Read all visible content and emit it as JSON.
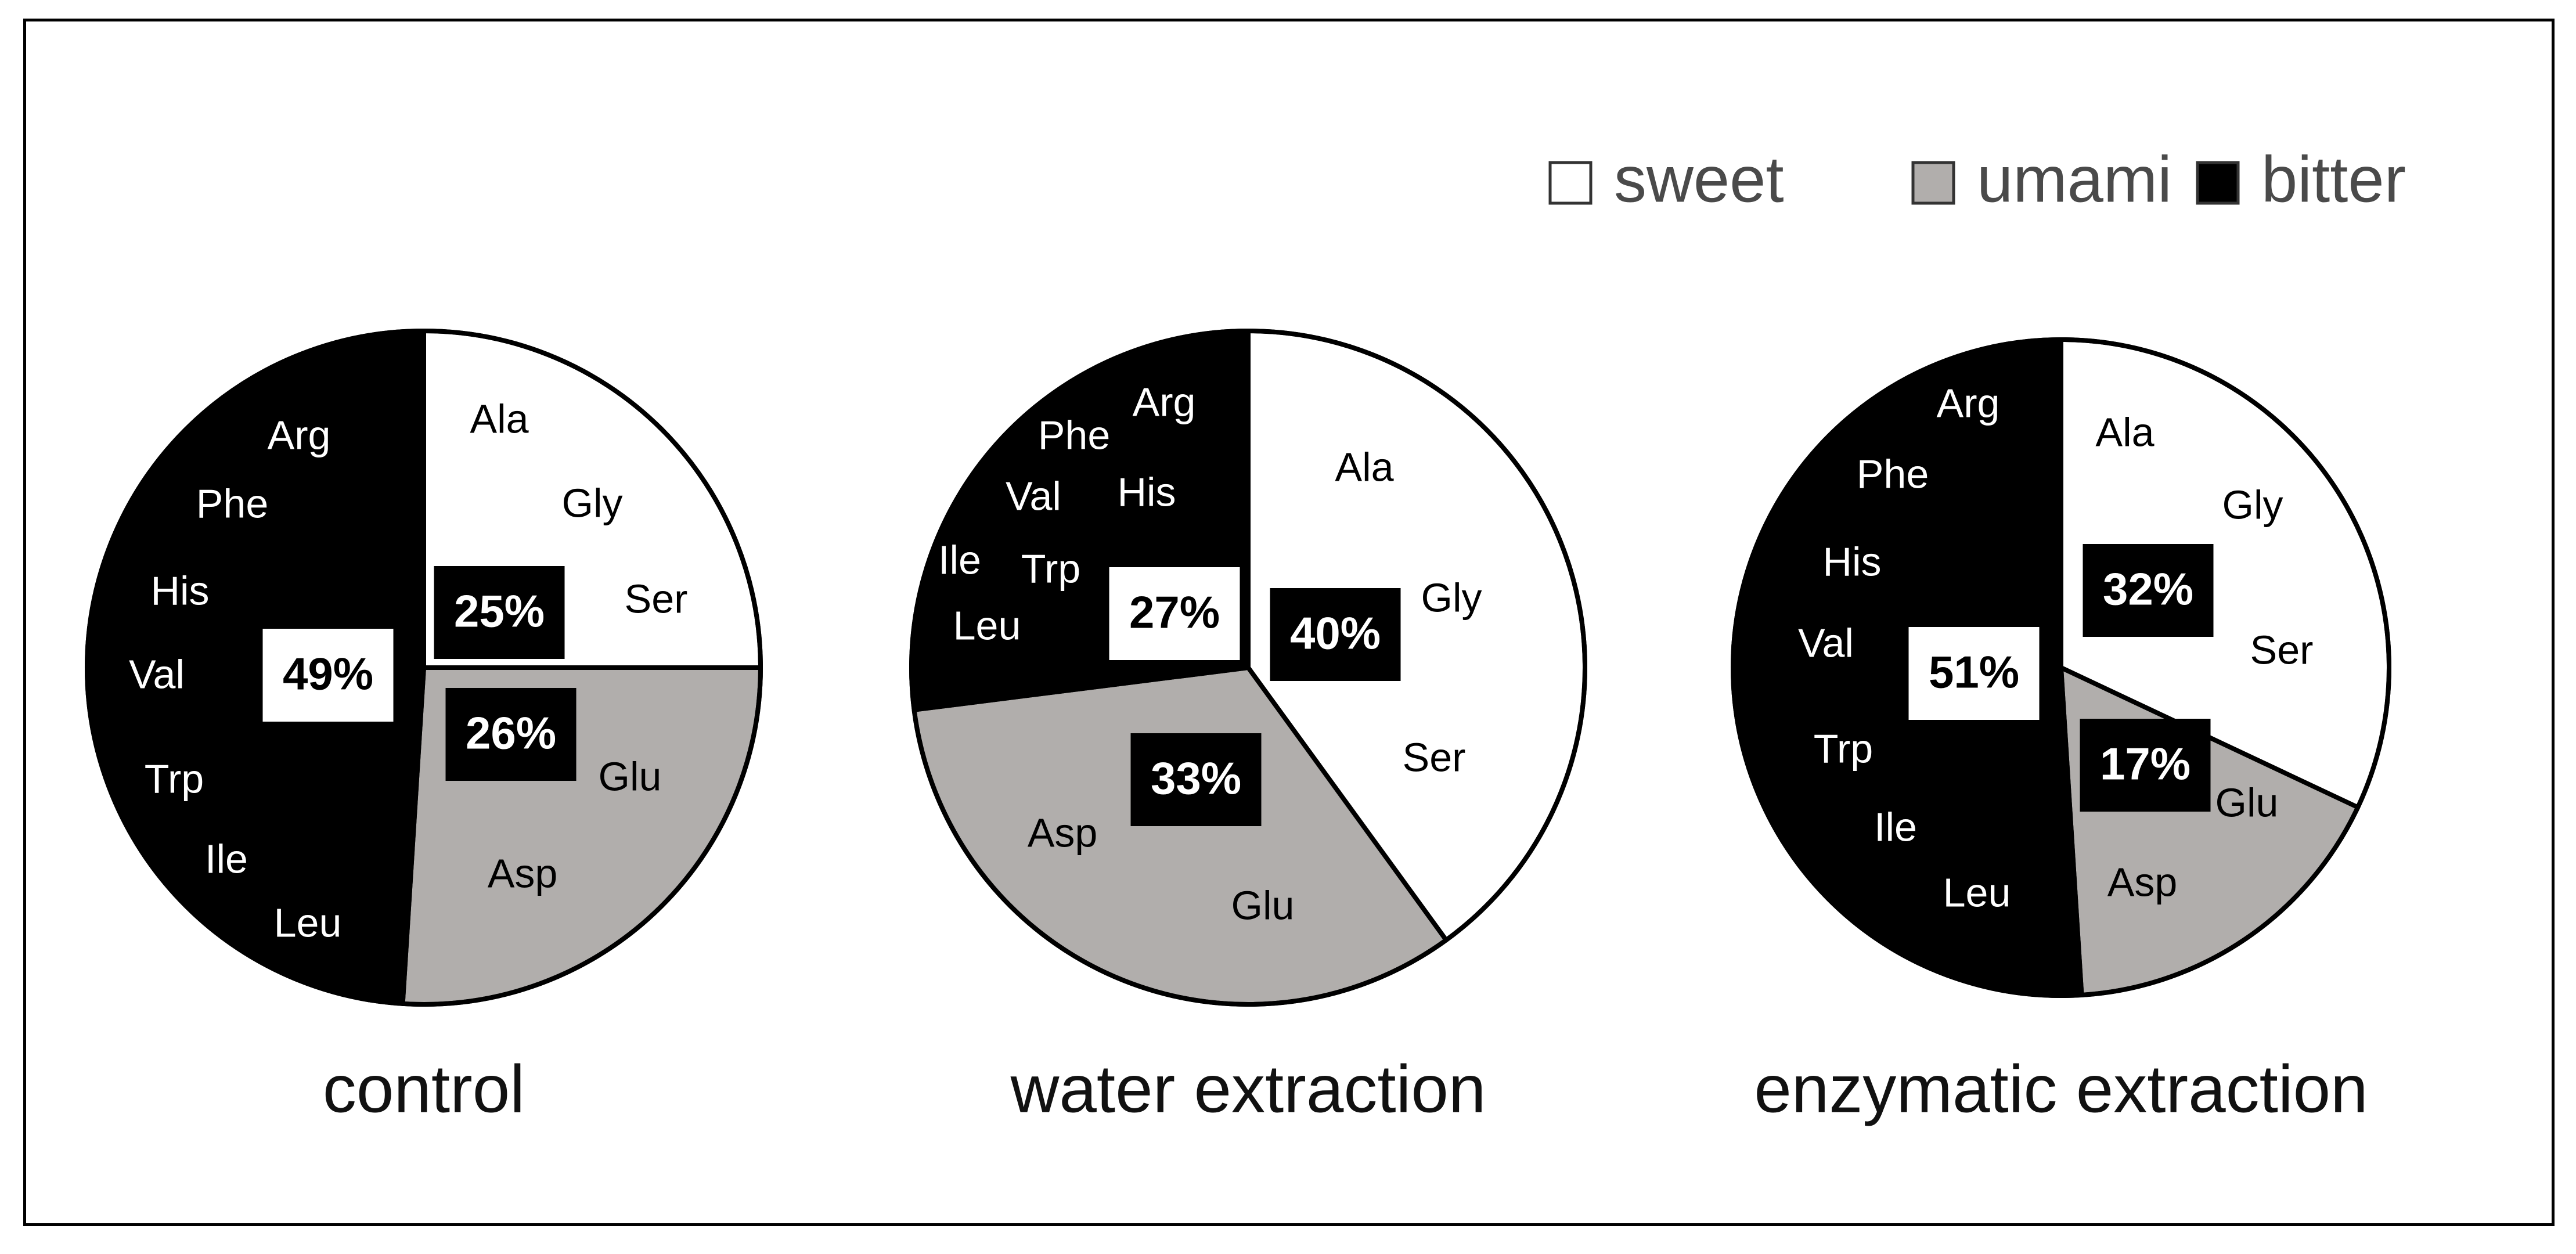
{
  "colors": {
    "sweet": "#ffffff",
    "umami": "#b1aeac",
    "bitter": "#000000",
    "outline": "#000000"
  },
  "legend": [
    {
      "name": "sweet",
      "color": "#ffffff"
    },
    {
      "name": "umami",
      "color": "#b1aeac"
    },
    {
      "name": "bitter",
      "color": "#000000"
    }
  ],
  "chart_data": [
    {
      "type": "pie",
      "title": "control",
      "slices": [
        {
          "name": "sweet",
          "value": 25,
          "label": "25%",
          "amino_acids": [
            "Ala",
            "Gly",
            "Ser"
          ]
        },
        {
          "name": "umami",
          "value": 26,
          "label": "26%",
          "amino_acids": [
            "Glu",
            "Asp"
          ]
        },
        {
          "name": "bitter",
          "value": 49,
          "label": "49%",
          "amino_acids": [
            "Arg",
            "Phe",
            "His",
            "Val",
            "Trp",
            "Ile",
            "Leu"
          ]
        }
      ],
      "legend_position": "top-right"
    },
    {
      "type": "pie",
      "title": "water extraction",
      "slices": [
        {
          "name": "sweet",
          "value": 40,
          "label": "40%",
          "amino_acids": [
            "Ala",
            "Gly",
            "Ser"
          ]
        },
        {
          "name": "umami",
          "value": 33,
          "label": "33%",
          "amino_acids": [
            "Asp",
            "Glu"
          ]
        },
        {
          "name": "bitter",
          "value": 27,
          "label": "27%",
          "amino_acids": [
            "Arg",
            "Phe",
            "His",
            "Val",
            "Ile",
            "Trp",
            "Leu"
          ]
        }
      ],
      "legend_position": "top-right"
    },
    {
      "type": "pie",
      "title": "enzymatic extraction",
      "slices": [
        {
          "name": "sweet",
          "value": 32,
          "label": "32%",
          "amino_acids": [
            "Ala",
            "Gly",
            "Ser"
          ]
        },
        {
          "name": "umami",
          "value": 17,
          "label": "17%",
          "amino_acids": [
            "Glu",
            "Asp"
          ]
        },
        {
          "name": "bitter",
          "value": 51,
          "label": "51%",
          "amino_acids": [
            "Arg",
            "Phe",
            "His",
            "Val",
            "Trp",
            "Ile",
            "Leu"
          ]
        }
      ],
      "legend_position": "top-right"
    }
  ]
}
